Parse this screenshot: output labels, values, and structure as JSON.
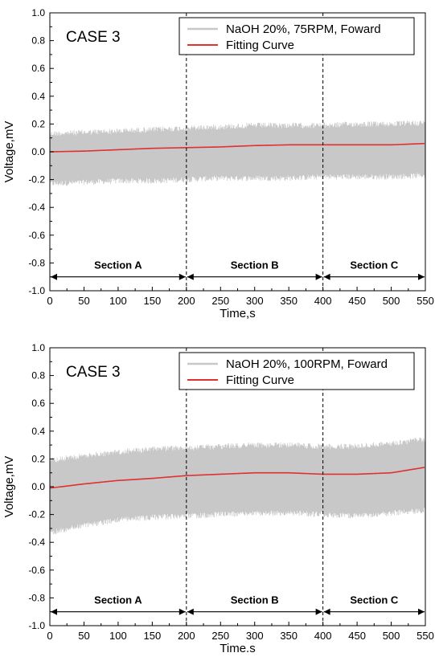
{
  "chart_data": [
    {
      "type": "line",
      "annotation": "CASE 3",
      "xlabel": "Time,s",
      "ylabel": "Voltage,mV",
      "xlim": [
        0,
        550
      ],
      "ylim": [
        -1.0,
        1.0
      ],
      "xticks": [
        "0",
        "50",
        "100",
        "150",
        "200",
        "250",
        "300",
        "350",
        "400",
        "450",
        "500",
        "550"
      ],
      "yticks": [
        "-1.0",
        "-0.8",
        "-0.6",
        "-0.4",
        "-0.2",
        "0.0",
        "0.2",
        "0.4",
        "0.6",
        "0.8",
        "1.0"
      ],
      "legend_position": "top-right",
      "series": [
        {
          "name": "NaOH 20%, 75RPM, Foward",
          "color": "#c8c8c8",
          "style": "noise-band",
          "x": [
            0,
            50,
            100,
            150,
            200,
            250,
            300,
            350,
            400,
            450,
            500,
            550
          ],
          "upper": [
            0.15,
            0.16,
            0.17,
            0.18,
            0.19,
            0.2,
            0.21,
            0.21,
            0.21,
            0.22,
            0.22,
            0.23
          ],
          "lower": [
            -0.25,
            -0.24,
            -0.23,
            -0.23,
            -0.22,
            -0.21,
            -0.21,
            -0.21,
            -0.2,
            -0.2,
            -0.2,
            -0.19
          ]
        },
        {
          "name": "Fitting Curve",
          "color": "#e03030",
          "style": "line",
          "x": [
            0,
            50,
            100,
            150,
            200,
            250,
            300,
            350,
            400,
            450,
            500,
            550
          ],
          "values": [
            0.0,
            0.005,
            0.015,
            0.025,
            0.03,
            0.035,
            0.045,
            0.05,
            0.05,
            0.05,
            0.05,
            0.06
          ]
        }
      ],
      "sections": {
        "dividers": [
          200,
          400
        ],
        "arrow_y": -0.9,
        "labels": [
          "Section A",
          "Section B",
          "Section C"
        ],
        "ranges": [
          [
            0,
            200
          ],
          [
            200,
            400
          ],
          [
            400,
            550
          ]
        ]
      }
    },
    {
      "type": "line",
      "annotation": "CASE 3",
      "xlabel": "Time.s",
      "ylabel": "Voltage,mV",
      "xlim": [
        0,
        550
      ],
      "ylim": [
        -1.0,
        1.0
      ],
      "xticks": [
        "0",
        "50",
        "100",
        "150",
        "200",
        "250",
        "300",
        "350",
        "400",
        "450",
        "500",
        "550"
      ],
      "yticks": [
        "-1.0",
        "-0.8",
        "-0.6",
        "-0.4",
        "-0.2",
        "0.0",
        "0.2",
        "0.4",
        "0.6",
        "0.8",
        "1.0"
      ],
      "legend_position": "top-right",
      "series": [
        {
          "name": "NaOH 20%, 100RPM, Foward",
          "color": "#c8c8c8",
          "style": "noise-band",
          "x": [
            0,
            50,
            100,
            150,
            200,
            250,
            300,
            350,
            400,
            450,
            500,
            550
          ],
          "upper": [
            0.21,
            0.24,
            0.27,
            0.29,
            0.3,
            0.31,
            0.32,
            0.32,
            0.31,
            0.31,
            0.33,
            0.36
          ],
          "lower": [
            -0.35,
            -0.3,
            -0.26,
            -0.24,
            -0.23,
            -0.22,
            -0.21,
            -0.21,
            -0.22,
            -0.23,
            -0.21,
            -0.19
          ]
        },
        {
          "name": "Fitting Curve",
          "color": "#e03030",
          "style": "line",
          "x": [
            0,
            50,
            100,
            150,
            200,
            250,
            300,
            350,
            400,
            450,
            500,
            550
          ],
          "values": [
            -0.01,
            0.02,
            0.045,
            0.06,
            0.08,
            0.09,
            0.1,
            0.1,
            0.09,
            0.09,
            0.1,
            0.14
          ]
        }
      ],
      "sections": {
        "dividers": [
          200,
          400
        ],
        "arrow_y": -0.9,
        "labels": [
          "Section A",
          "Section B",
          "Section C"
        ],
        "ranges": [
          [
            0,
            200
          ],
          [
            200,
            400
          ],
          [
            400,
            550
          ]
        ]
      }
    }
  ]
}
